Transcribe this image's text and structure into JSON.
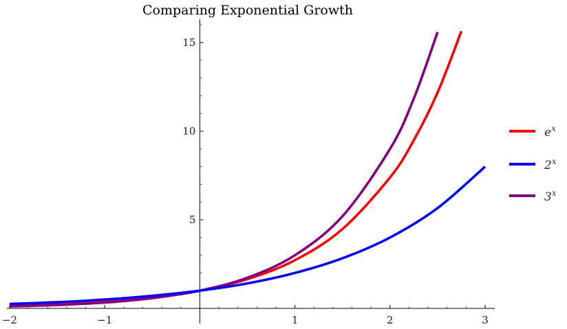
{
  "chart_data": {
    "type": "line",
    "title": "Comparing Exponential Growth",
    "xlabel": "",
    "ylabel": "",
    "xlim": [
      -2,
      3
    ],
    "ylim": [
      0,
      16
    ],
    "x_ticks": [
      {
        "value": -2,
        "label": "−2"
      },
      {
        "value": -1,
        "label": "−1"
      },
      {
        "value": 1,
        "label": "1"
      },
      {
        "value": 2,
        "label": "2"
      },
      {
        "value": 3,
        "label": "3"
      }
    ],
    "y_ticks": [
      {
        "value": 5,
        "label": "5"
      },
      {
        "value": 10,
        "label": "10"
      },
      {
        "value": 15,
        "label": "15"
      }
    ],
    "grid": false,
    "legend_position": "right",
    "series": [
      {
        "name": "e",
        "exponent_label": "x",
        "color": "#ff0000",
        "x": [
          -2,
          -1.5,
          -1,
          -0.5,
          0,
          0.5,
          1,
          1.5,
          2,
          2.25,
          2.5,
          2.75
        ],
        "values": [
          0.14,
          0.22,
          0.37,
          0.61,
          1,
          1.65,
          2.72,
          4.48,
          7.39,
          9.49,
          12.18,
          15.64
        ]
      },
      {
        "name": "2",
        "exponent_label": "x",
        "color": "#0000ff",
        "x": [
          -2,
          -1.5,
          -1,
          -0.5,
          0,
          0.5,
          1,
          1.5,
          2,
          2.5,
          3
        ],
        "values": [
          0.25,
          0.35,
          0.5,
          0.71,
          1,
          1.41,
          2,
          2.83,
          4,
          5.66,
          8
        ]
      },
      {
        "name": "3",
        "exponent_label": "x",
        "color": "#800080",
        "x": [
          -2,
          -1.5,
          -1,
          -0.5,
          0,
          0.5,
          1,
          1.5,
          2,
          2.25,
          2.5
        ],
        "values": [
          0.11,
          0.19,
          0.33,
          0.58,
          1,
          1.73,
          3,
          5.2,
          9,
          11.84,
          15.59
        ]
      }
    ]
  }
}
